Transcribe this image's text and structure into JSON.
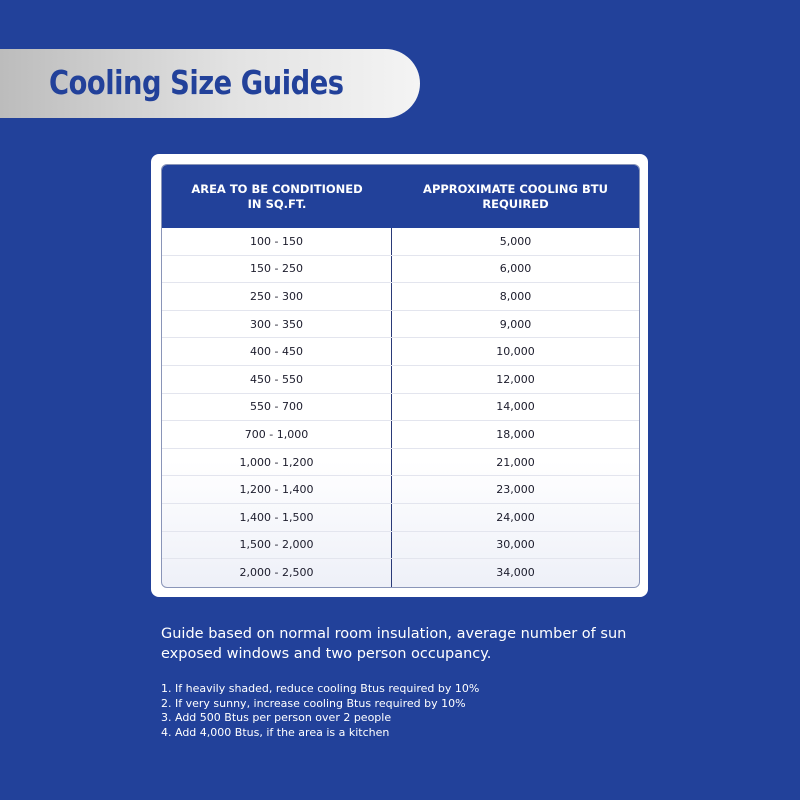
{
  "title": "Cooling Size Guides",
  "table": {
    "headers": [
      "AREA TO BE CONDITIONED IN SQ.FT.",
      "APPROXIMATE COOLING BTU REQUIRED"
    ],
    "header_lines": [
      [
        "AREA TO BE CONDITIONED",
        "IN SQ.FT."
      ],
      [
        "APPROXIMATE COOLING BTU",
        "REQUIRED"
      ]
    ],
    "rows": [
      [
        "100 - 150",
        "5,000"
      ],
      [
        "150 - 250",
        "6,000"
      ],
      [
        "250 - 300",
        "8,000"
      ],
      [
        "300 - 350",
        "9,000"
      ],
      [
        "400 - 450",
        "10,000"
      ],
      [
        "450 - 550",
        "12,000"
      ],
      [
        "550 - 700",
        "14,000"
      ],
      [
        "700 - 1,000",
        "18,000"
      ],
      [
        "1,000 - 1,200",
        "21,000"
      ],
      [
        "1,200 - 1,400",
        "23,000"
      ],
      [
        "1,400 - 1,500",
        "24,000"
      ],
      [
        "1,500 - 2,000",
        "30,000"
      ],
      [
        "2,000 - 2,500",
        "34,000"
      ]
    ]
  },
  "note": "Guide based on normal room insulation, average number of sun exposed windows and two person occupancy.",
  "adjustments": [
    "1.  If heavily shaded, reduce cooling Btus required by 10%",
    "2. If very sunny, increase cooling Btus required by 10%",
    "3. Add 500 Btus per person over 2 people",
    "4. Add 4,000 Btus, if the area is a kitchen"
  ],
  "colors": {
    "background": "#22419a",
    "header": "#22419a",
    "title": "#22419a"
  }
}
